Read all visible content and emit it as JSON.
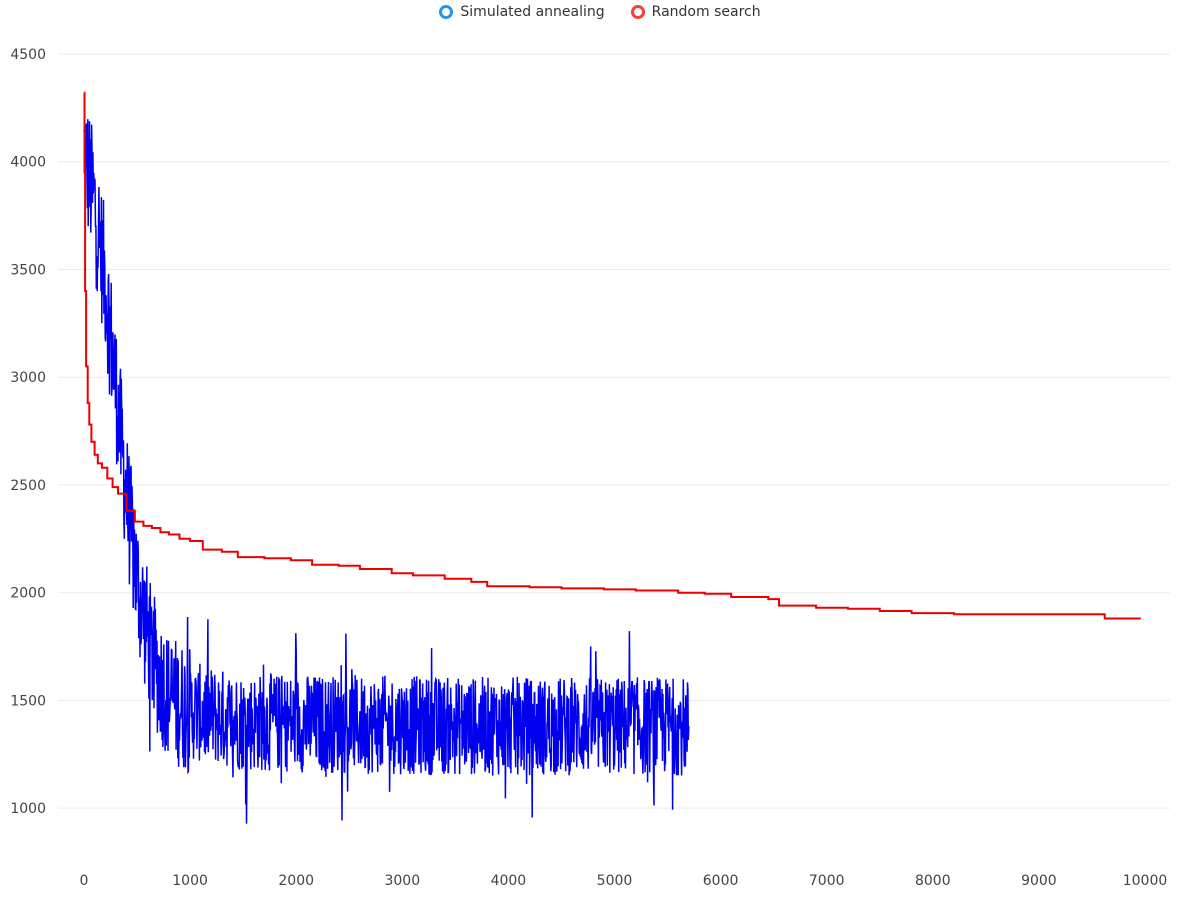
{
  "chart_data": {
    "type": "line",
    "xlim": [
      0,
      10000
    ],
    "ylim": [
      750,
      4500
    ],
    "x_ticks": [
      0,
      1000,
      2000,
      3000,
      4000,
      5000,
      6000,
      7000,
      8000,
      9000,
      10000
    ],
    "y_ticks": [
      1000,
      1500,
      2000,
      2500,
      3000,
      3500,
      4000,
      4500
    ],
    "grid": "horizontal",
    "legend_position": "top-center",
    "series": [
      {
        "name": "Simulated annealing",
        "color": "#0000ee",
        "legend_color": "#2196f3",
        "shape": "noisy-decay",
        "x_end": 5700,
        "trend": [
          [
            0,
            4050
          ],
          [
            100,
            3800
          ],
          [
            200,
            3450
          ],
          [
            300,
            2950
          ],
          [
            400,
            2450
          ],
          [
            500,
            2050
          ],
          [
            600,
            1800
          ],
          [
            700,
            1620
          ],
          [
            800,
            1520
          ],
          [
            1000,
            1450
          ],
          [
            1500,
            1400
          ],
          [
            2500,
            1390
          ],
          [
            3500,
            1380
          ],
          [
            4500,
            1380
          ],
          [
            5700,
            1380
          ]
        ],
        "min_value": 730,
        "max_value_after_1000": 2010
      },
      {
        "name": "Random search",
        "color": "#ee0000",
        "legend_color": "#f44336",
        "points": [
          [
            0,
            4320
          ],
          [
            5,
            3950
          ],
          [
            10,
            3400
          ],
          [
            20,
            3050
          ],
          [
            35,
            2880
          ],
          [
            50,
            2780
          ],
          [
            70,
            2700
          ],
          [
            100,
            2640
          ],
          [
            130,
            2600
          ],
          [
            170,
            2580
          ],
          [
            220,
            2530
          ],
          [
            270,
            2490
          ],
          [
            320,
            2460
          ],
          [
            400,
            2380
          ],
          [
            480,
            2330
          ],
          [
            560,
            2310
          ],
          [
            640,
            2300
          ],
          [
            720,
            2280
          ],
          [
            800,
            2270
          ],
          [
            900,
            2250
          ],
          [
            1000,
            2240
          ],
          [
            1120,
            2200
          ],
          [
            1300,
            2190
          ],
          [
            1450,
            2165
          ],
          [
            1700,
            2160
          ],
          [
            1950,
            2150
          ],
          [
            2150,
            2130
          ],
          [
            2400,
            2125
          ],
          [
            2600,
            2110
          ],
          [
            2900,
            2090
          ],
          [
            3100,
            2080
          ],
          [
            3400,
            2065
          ],
          [
            3650,
            2050
          ],
          [
            3800,
            2030
          ],
          [
            4200,
            2025
          ],
          [
            4500,
            2020
          ],
          [
            4900,
            2015
          ],
          [
            5200,
            2010
          ],
          [
            5600,
            2000
          ],
          [
            5850,
            1995
          ],
          [
            6100,
            1980
          ],
          [
            6450,
            1970
          ],
          [
            6550,
            1940
          ],
          [
            6900,
            1930
          ],
          [
            7200,
            1925
          ],
          [
            7500,
            1915
          ],
          [
            7800,
            1905
          ],
          [
            8200,
            1900
          ],
          [
            9000,
            1900
          ],
          [
            9600,
            1900
          ],
          [
            9620,
            1880
          ],
          [
            9960,
            1880
          ]
        ]
      }
    ]
  }
}
